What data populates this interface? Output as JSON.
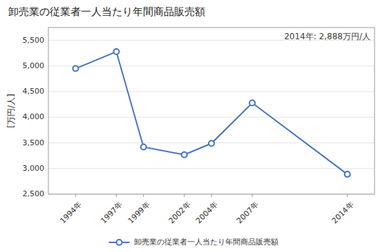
{
  "chart_data": {
    "type": "line",
    "title": "卸売業の従業者一人当たり年間商品販売額",
    "ylabel": "[万円/人]",
    "annotation": "2014年: 2,888万円/人",
    "x": [
      1994,
      1997,
      1999,
      2002,
      2004,
      2007,
      2014
    ],
    "series": [
      {
        "name": "卸売業の従業者一人当たり年間商品販売額",
        "color": "#4472c4",
        "marker": "circle",
        "values": [
          4950,
          5280,
          3420,
          3270,
          3490,
          4280,
          2888
        ]
      }
    ],
    "xlim": [
      1992,
      2016
    ],
    "xticks": [
      {
        "value": 1994,
        "label": "1994年"
      },
      {
        "value": 1997,
        "label": "1997年"
      },
      {
        "value": 1999,
        "label": "1999年"
      },
      {
        "value": 2002,
        "label": "2002年"
      },
      {
        "value": 2004,
        "label": "2004年"
      },
      {
        "value": 2007,
        "label": "2007年"
      },
      {
        "value": 2014,
        "label": "2014年"
      }
    ],
    "ylim": [
      2500,
      5750
    ],
    "yticks": [
      {
        "value": 2500,
        "label": "2,500"
      },
      {
        "value": 3000,
        "label": "3,000"
      },
      {
        "value": 3500,
        "label": "3,500"
      },
      {
        "value": 4000,
        "label": "4,000"
      },
      {
        "value": 4500,
        "label": "4,500"
      },
      {
        "value": 5000,
        "label": "5,000"
      },
      {
        "value": 5500,
        "label": "5,500"
      }
    ],
    "grid": true,
    "legend": "bottom"
  }
}
